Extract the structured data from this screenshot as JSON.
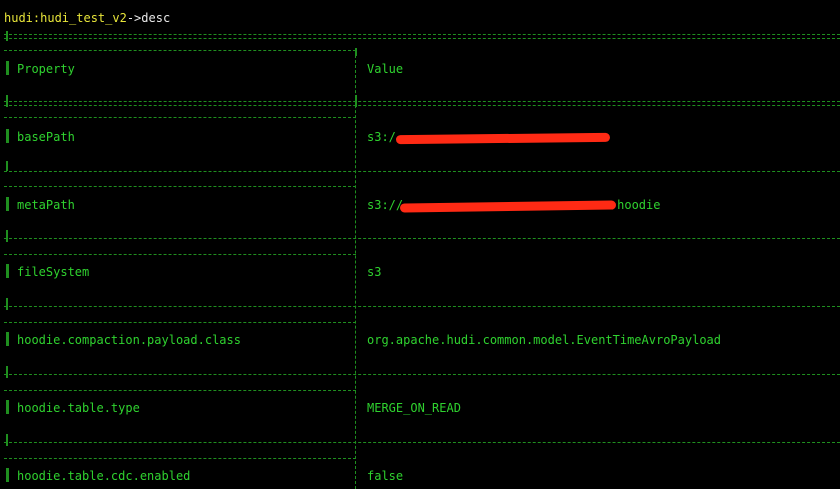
{
  "terminal": {
    "prompt_name": "hudi:hudi_test_v2",
    "prompt_sep": "->",
    "command": "desc"
  },
  "table": {
    "header": {
      "property": "Property",
      "value": "Value"
    },
    "rows": [
      {
        "property": "basePath",
        "value": "s3:/",
        "redacted": true
      },
      {
        "property": "metaPath",
        "value": "s3://",
        "value_tail": "hoodie",
        "redacted": true
      },
      {
        "property": "fileSystem",
        "value": "s3"
      },
      {
        "property": "hoodie.compaction.payload.class",
        "value": "org.apache.hudi.common.model.EventTimeAvroPayload"
      },
      {
        "property": "hoodie.table.type",
        "value": "MERGE_ON_READ"
      },
      {
        "property": "hoodie.table.cdc.enabled",
        "value": "false"
      }
    ]
  },
  "colors": {
    "background": "#000000",
    "text": "#2fd22f",
    "border": "#1f8f1f",
    "prompt": "#e9e63a",
    "redaction": "#ff2a14"
  }
}
